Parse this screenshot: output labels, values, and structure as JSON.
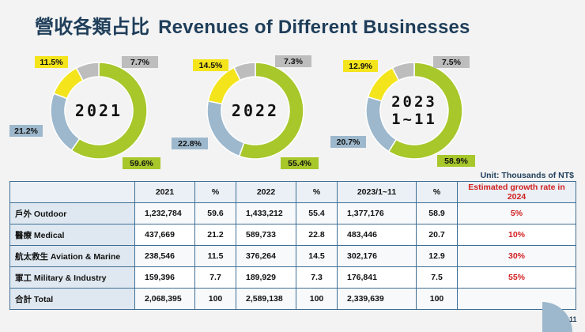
{
  "title": {
    "zh": "營收各類占比",
    "en": "Revenues of Different Businesses"
  },
  "unit": "Unit: Thousands of NT$",
  "colors": {
    "outdoor": "#a7c72b",
    "medical": "#9db8cc",
    "aviation": "#f4e41c",
    "military": "#bdbdbd",
    "title": "#1f3e5a",
    "border": "#3f6f95",
    "growth": "#d22020"
  },
  "chart_data": [
    {
      "type": "pie",
      "center_label": [
        "2021"
      ],
      "categories": [
        "Outdoor",
        "Medical",
        "Aviation & Marine",
        "Military & Industry"
      ],
      "values": [
        59.6,
        21.2,
        11.5,
        7.7
      ],
      "labels": [
        "59.6%",
        "21.2%",
        "11.5%",
        "7.7%"
      ]
    },
    {
      "type": "pie",
      "center_label": [
        "2022"
      ],
      "categories": [
        "Outdoor",
        "Medical",
        "Aviation & Marine",
        "Military & Industry"
      ],
      "values": [
        55.4,
        22.8,
        14.5,
        7.3
      ],
      "labels": [
        "55.4%",
        "22.8%",
        "14.5%",
        "7.3%"
      ]
    },
    {
      "type": "pie",
      "center_label": [
        "2023",
        "1~11"
      ],
      "categories": [
        "Outdoor",
        "Medical",
        "Aviation & Marine",
        "Military & Industry"
      ],
      "values": [
        58.9,
        20.7,
        12.9,
        7.5
      ],
      "labels": [
        "58.9%",
        "20.7%",
        "12.9%",
        "7.5%"
      ]
    }
  ],
  "table": {
    "headers": [
      "",
      "2021",
      "%",
      "2022",
      "%",
      "2023/1~11",
      "%",
      "Estimated growth rate in 2024"
    ],
    "rows": [
      [
        "戶外 Outdoor",
        "1,232,784",
        "59.6",
        "1,433,212",
        "55.4",
        "1,377,176",
        "58.9",
        "5%"
      ],
      [
        "醫療 Medical",
        "437,669",
        "21.2",
        "589,733",
        "22.8",
        "483,446",
        "20.7",
        "10%"
      ],
      [
        "航太救生 Aviation & Marine",
        "238,546",
        "11.5",
        "376,264",
        "14.5",
        "302,176",
        "12.9",
        "30%"
      ],
      [
        "軍工 Military & Industry",
        "159,396",
        "7.7",
        "189,929",
        "7.3",
        "176,841",
        "7.5",
        "55%"
      ],
      [
        "合計 Total",
        "2,068,395",
        "100",
        "2,589,138",
        "100",
        "2,339,639",
        "100",
        ""
      ]
    ]
  },
  "page_number": "11"
}
